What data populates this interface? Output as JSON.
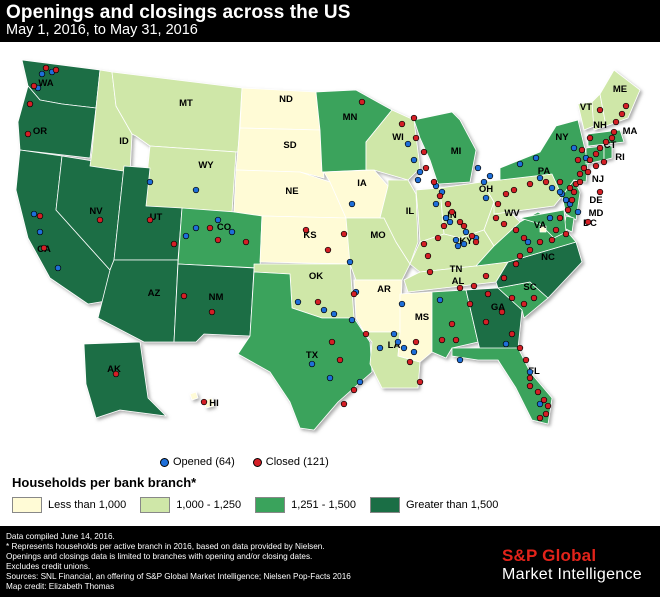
{
  "header": {
    "title": "Openings and closings across the US",
    "subtitle": "May 1, 2016, to May 31, 2016"
  },
  "legend": {
    "opened_label": "Opened (64)",
    "closed_label": "Closed (121)",
    "opened_color": "#1e6fd9",
    "closed_color": "#d41f26",
    "title": "Households per bank branch*",
    "bins": [
      {
        "label": "Less than 1,000",
        "color": "#fffbd6"
      },
      {
        "label": "1,000 - 1,250",
        "color": "#cfe7a8"
      },
      {
        "label": "1,251 - 1,500",
        "color": "#3aa35c"
      },
      {
        "label": "Greater than 1,500",
        "color": "#1a6e45"
      }
    ]
  },
  "states": [
    {
      "name": "WA",
      "bin": 3
    },
    {
      "name": "OR",
      "bin": 3
    },
    {
      "name": "CA",
      "bin": 3
    },
    {
      "name": "NV",
      "bin": 3
    },
    {
      "name": "ID",
      "bin": 1
    },
    {
      "name": "MT",
      "bin": 1
    },
    {
      "name": "WY",
      "bin": 1
    },
    {
      "name": "UT",
      "bin": 3
    },
    {
      "name": "AZ",
      "bin": 3
    },
    {
      "name": "CO",
      "bin": 2
    },
    {
      "name": "NM",
      "bin": 3
    },
    {
      "name": "ND",
      "bin": 0
    },
    {
      "name": "SD",
      "bin": 0
    },
    {
      "name": "NE",
      "bin": 0
    },
    {
      "name": "KS",
      "bin": 0
    },
    {
      "name": "OK",
      "bin": 1
    },
    {
      "name": "TX",
      "bin": 2
    },
    {
      "name": "MN",
      "bin": 2
    },
    {
      "name": "IA",
      "bin": 0
    },
    {
      "name": "MO",
      "bin": 1
    },
    {
      "name": "AR",
      "bin": 0
    },
    {
      "name": "LA",
      "bin": 1
    },
    {
      "name": "WI",
      "bin": 1
    },
    {
      "name": "IL",
      "bin": 1
    },
    {
      "name": "MI",
      "bin": 2
    },
    {
      "name": "IN",
      "bin": 1
    },
    {
      "name": "OH",
      "bin": 1
    },
    {
      "name": "KY",
      "bin": 1
    },
    {
      "name": "TN",
      "bin": 1
    },
    {
      "name": "MS",
      "bin": 0
    },
    {
      "name": "AL",
      "bin": 2
    },
    {
      "name": "GA",
      "bin": 3
    },
    {
      "name": "FL",
      "bin": 2
    },
    {
      "name": "SC",
      "bin": 2
    },
    {
      "name": "NC",
      "bin": 3
    },
    {
      "name": "VA",
      "bin": 2
    },
    {
      "name": "WV",
      "bin": 1
    },
    {
      "name": "PA",
      "bin": 1
    },
    {
      "name": "NY",
      "bin": 2
    },
    {
      "name": "VT",
      "bin": 1
    },
    {
      "name": "NH",
      "bin": 1
    },
    {
      "name": "ME",
      "bin": 1
    },
    {
      "name": "MA",
      "bin": 2
    },
    {
      "name": "CT",
      "bin": 2
    },
    {
      "name": "RI",
      "bin": 2
    },
    {
      "name": "NJ",
      "bin": 2
    },
    {
      "name": "DE",
      "bin": 2
    },
    {
      "name": "MD",
      "bin": 2
    },
    {
      "name": "DC",
      "bin": 0
    },
    {
      "name": "AK",
      "bin": 3
    },
    {
      "name": "HI",
      "bin": 0
    }
  ],
  "footer": {
    "notes": [
      "Data compiled June 14, 2016.",
      "* Represents households per active branch in 2016, based on data provided by Nielsen.",
      "Openings and closings data is limited to branches with opening and/or closing dates.",
      "Excludes credit unions.",
      "Sources: SNL Financial, an offering of S&P Global Market Intelligence; Nielsen Pop-Facts 2016",
      "Map credit: Elizabeth Thomas"
    ],
    "brand_line1": "S&P Global",
    "brand_line2": "Market Intelligence"
  }
}
